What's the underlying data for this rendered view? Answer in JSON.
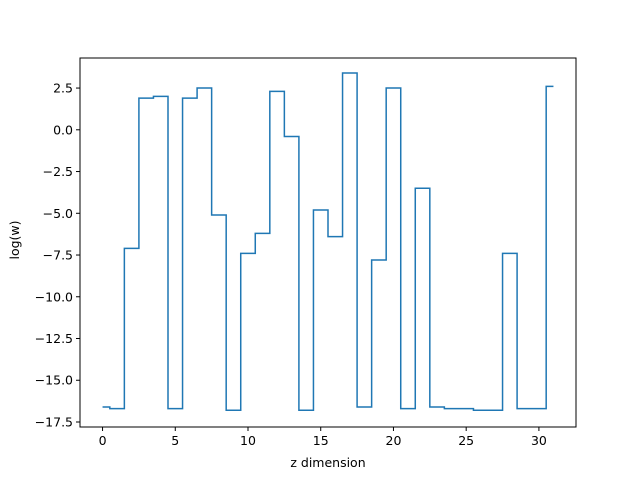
{
  "chart_data": {
    "type": "line",
    "drawstyle": "steps-mid",
    "title": "",
    "xlabel": "z dimension",
    "ylabel": "log(w)",
    "xlim": [
      -1.55,
      32.55
    ],
    "ylim": [
      -17.8,
      4.3
    ],
    "xticks": [
      0,
      5,
      10,
      15,
      20,
      25,
      30
    ],
    "xtick_labels": [
      "0",
      "5",
      "10",
      "15",
      "20",
      "25",
      "30"
    ],
    "yticks": [
      2.5,
      0.0,
      -2.5,
      -5.0,
      -7.5,
      -10.0,
      -12.5,
      -15.0,
      -17.5
    ],
    "ytick_labels": [
      "2.5",
      "0.0",
      "−2.5",
      "−5.0",
      "−7.5",
      "−10.0",
      "−12.5",
      "−15.0",
      "−17.5"
    ],
    "grid": false,
    "legend": "none",
    "colors": {
      "series": "#1f77b4",
      "axes": "#000000",
      "background": "#ffffff"
    },
    "series": [
      {
        "x": [
          0,
          1,
          2,
          3,
          4,
          5,
          6,
          7,
          8,
          9,
          10,
          11,
          12,
          13,
          14,
          15,
          16,
          17,
          18,
          19,
          20,
          21,
          22,
          23,
          24,
          25,
          26,
          27,
          28,
          29,
          30,
          31
        ],
        "values": [
          -16.6,
          -16.7,
          -7.1,
          1.9,
          2.0,
          -16.7,
          1.9,
          2.5,
          -5.1,
          -16.8,
          -7.4,
          -6.2,
          2.3,
          -0.4,
          -16.8,
          -4.8,
          -6.4,
          3.4,
          -16.6,
          -7.8,
          2.5,
          -16.7,
          -3.5,
          -16.6,
          -16.7,
          -16.7,
          -16.8,
          -16.8,
          -7.4,
          -16.7,
          -16.7,
          2.6
        ]
      }
    ]
  }
}
